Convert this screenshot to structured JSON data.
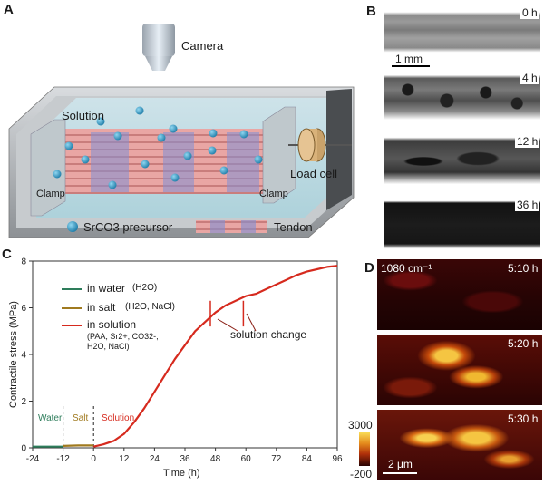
{
  "panels": {
    "a": {
      "label": "A",
      "camera": "Camera",
      "solution": "Solution",
      "load_cell": "Load cell",
      "clamp_left": "Clamp",
      "clamp_right": "Clamp",
      "legend_precursor": "SrCO3 precursor",
      "legend_tendon": "Tendon"
    },
    "b": {
      "label": "B",
      "scale": "1 mm",
      "times": [
        "0 h",
        "4 h",
        "12 h",
        "36 h"
      ]
    },
    "c": {
      "label": "C",
      "legend": [
        {
          "text": "in water",
          "sub": "(H2O)",
          "color": "#2e7d5b"
        },
        {
          "text": "in salt",
          "sub": "(H2O, NaCl)",
          "color": "#a07a1f"
        },
        {
          "text": "in solution",
          "sub": "(PAA, Sr2+, CO32-, H2O, NaCl)",
          "color": "#d62a1e"
        }
      ],
      "phase_labels": [
        "Water",
        "Salt",
        "Solution"
      ],
      "annotation": "solution change"
    },
    "d": {
      "label": "D",
      "wavenumber": "1080 cm⁻¹",
      "times": [
        "5:10 h",
        "5:20 h",
        "5:30 h"
      ],
      "colorbar_max": "3000",
      "colorbar_min": "-200",
      "scale": "2 μm"
    }
  },
  "chart_data": {
    "type": "line",
    "xlabel": "Time (h)",
    "ylabel": "Contractile stress (MPa)",
    "xlim": [
      -24,
      96
    ],
    "ylim": [
      0,
      8
    ],
    "xticks": [
      -24,
      -12,
      0,
      12,
      24,
      36,
      48,
      60,
      72,
      84,
      96
    ],
    "yticks": [
      0,
      2,
      4,
      6,
      8
    ],
    "series": [
      {
        "name": "in water",
        "color": "#2e7d5b",
        "x": [
          -24,
          -18,
          -12
        ],
        "y": [
          0.05,
          0.05,
          0.05
        ]
      },
      {
        "name": "in salt",
        "color": "#a07a1f",
        "x": [
          -12,
          -6,
          0
        ],
        "y": [
          0.08,
          0.1,
          0.1
        ]
      },
      {
        "name": "in solution",
        "color": "#d62a1e",
        "x": [
          0,
          4,
          8,
          12,
          16,
          20,
          24,
          28,
          32,
          36,
          40,
          44,
          46,
          48,
          52,
          56,
          59,
          60,
          64,
          68,
          72,
          76,
          80,
          84,
          88,
          92,
          96
        ],
        "y": [
          0.05,
          0.15,
          0.3,
          0.6,
          1.1,
          1.7,
          2.4,
          3.1,
          3.8,
          4.4,
          5.0,
          5.4,
          5.6,
          5.8,
          6.1,
          6.3,
          6.45,
          6.5,
          6.6,
          6.8,
          7.0,
          7.2,
          7.4,
          7.55,
          7.65,
          7.75,
          7.8
        ]
      }
    ],
    "dividers_x": [
      -12,
      0
    ]
  }
}
